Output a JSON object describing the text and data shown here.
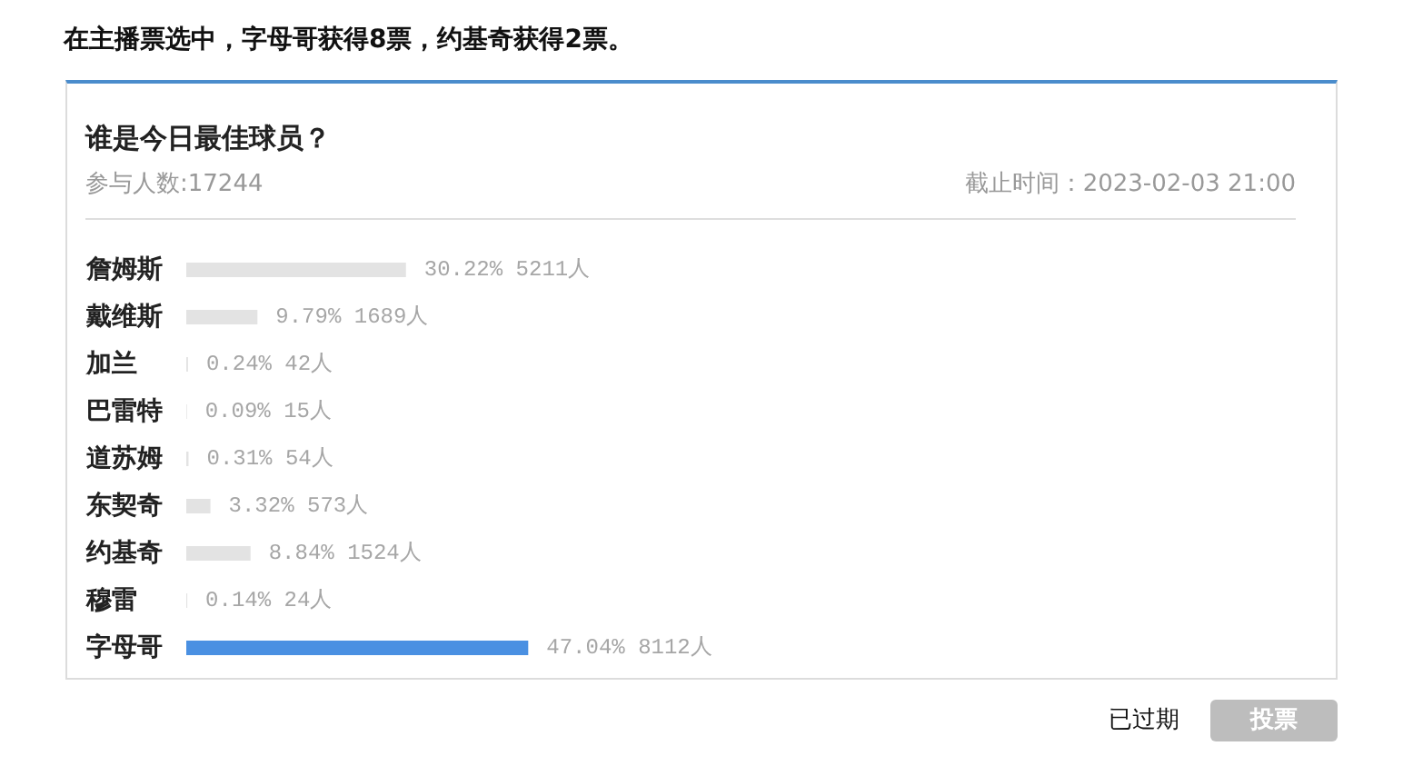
{
  "chart_data": {
    "type": "bar",
    "orientation": "horizontal",
    "title": "在主播票选中，字母哥获得8票，约基奇获得2票。",
    "subtitle": "谁是今日最佳球员？",
    "annotations": [
      "参与人数:17244",
      "截止时间：2023-02-03 21:00",
      "已过期",
      "投票"
    ],
    "categories": [
      "詹姆斯",
      "戴维斯",
      "加兰",
      "巴雷特",
      "道苏姆",
      "东契奇",
      "约基奇",
      "穆雷",
      "字母哥"
    ],
    "values": [
      30.22,
      9.79,
      0.24,
      0.09,
      0.31,
      3.32,
      8.84,
      0.14,
      47.04
    ],
    "value_labels": [
      "30.22% 5211人",
      "9.79% 1689人",
      "0.24% 42人",
      "0.09% 15人",
      "0.31% 54人",
      "3.32% 573人",
      "8.84% 1524人",
      "0.14% 24人",
      "47.04% 8112人"
    ],
    "colors": [
      "#e3e3e3",
      "#e3e3e3",
      "#e3e3e3",
      "#e3e3e3",
      "#e3e3e3",
      "#e3e3e3",
      "#e3e3e3",
      "#e3e3e3",
      "#4a90e2"
    ]
  }
}
